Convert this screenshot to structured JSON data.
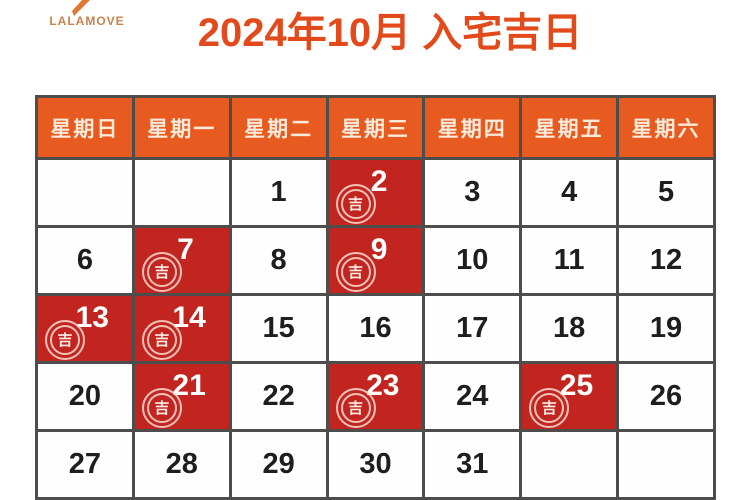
{
  "logo": {
    "text": "LALAMOVE",
    "icon": "lalamove-bolt-icon"
  },
  "title": "2024年10月 入宅吉日",
  "colors": {
    "title": "#E24A1C",
    "logo": "#C9824C",
    "header_bg": "#E75A20",
    "header_text": "#FBE9D9",
    "lucky_bg": "#C2251F",
    "lucky_text": "#FFFFFF",
    "day_text": "#1E1E1E",
    "grid_border": "#4D4D4D"
  },
  "calendar": {
    "weekdays": [
      "星期日",
      "星期一",
      "星期二",
      "星期三",
      "星期四",
      "星期五",
      "星期六"
    ],
    "lucky_badge": "吉",
    "lucky_days": [
      "2",
      "7",
      "9",
      "13",
      "14",
      "21",
      "23",
      "25"
    ],
    "weeks": [
      [
        "",
        "",
        "1",
        "2",
        "3",
        "4",
        "5"
      ],
      [
        "6",
        "7",
        "8",
        "9",
        "10",
        "11",
        "12"
      ],
      [
        "13",
        "14",
        "15",
        "16",
        "17",
        "18",
        "19"
      ],
      [
        "20",
        "21",
        "22",
        "23",
        "24",
        "25",
        "26"
      ],
      [
        "27",
        "28",
        "29",
        "30",
        "31",
        "",
        ""
      ]
    ]
  }
}
